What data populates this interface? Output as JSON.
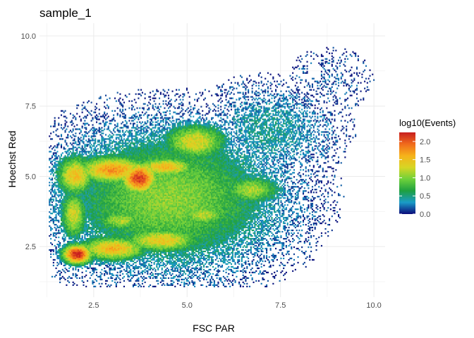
{
  "chart_data": {
    "type": "heatmap",
    "title": "sample_1",
    "xlabel": "FSC PAR",
    "ylabel": "Hoechst Red",
    "xlim": [
      1.05,
      10.3
    ],
    "ylim": [
      0.7,
      10.45
    ],
    "x_ticks": [
      "2.5",
      "5.0",
      "7.5",
      "10.0"
    ],
    "x_tick_values": [
      2.5,
      5.0,
      7.5,
      10.0
    ],
    "y_ticks": [
      "2.5",
      "5.0",
      "7.5",
      "10.0"
    ],
    "y_tick_values": [
      2.5,
      5.0,
      7.5,
      10.0
    ],
    "grid": true,
    "legend": {
      "title": "log10(Events)",
      "placement": "right",
      "ticks": [
        "0.0",
        "0.5",
        "1.0",
        "1.5",
        "2.0"
      ],
      "tick_values": [
        0.0,
        0.5,
        1.0,
        1.5,
        2.0
      ],
      "range": [
        0.0,
        2.25
      ]
    },
    "colorscale": [
      "#0b0b7a",
      "#1a9bc7",
      "#1fa040",
      "#6fd13a",
      "#d7d624",
      "#f6b21a",
      "#f06a1c",
      "#c81e1e"
    ],
    "density_components": [
      {
        "x": 2.05,
        "y": 2.2,
        "sx": 0.28,
        "sy": 0.25,
        "value": 2.3
      },
      {
        "x": 3.7,
        "y": 4.9,
        "sx": 0.35,
        "sy": 0.4,
        "value": 2.15
      },
      {
        "x": 3.0,
        "y": 5.2,
        "sx": 0.7,
        "sy": 0.35,
        "value": 1.75
      },
      {
        "x": 4.4,
        "y": 5.3,
        "sx": 0.6,
        "sy": 0.25,
        "value": 1.55
      },
      {
        "x": 2.0,
        "y": 5.0,
        "sx": 0.35,
        "sy": 0.5,
        "value": 1.5
      },
      {
        "x": 3.0,
        "y": 2.4,
        "sx": 0.65,
        "sy": 0.3,
        "value": 1.6
      },
      {
        "x": 4.3,
        "y": 2.7,
        "sx": 0.75,
        "sy": 0.3,
        "value": 1.45
      },
      {
        "x": 5.2,
        "y": 6.2,
        "sx": 0.6,
        "sy": 0.45,
        "value": 1.35
      },
      {
        "x": 5.4,
        "y": 3.6,
        "sx": 0.5,
        "sy": 0.3,
        "value": 1.2
      },
      {
        "x": 6.7,
        "y": 4.5,
        "sx": 0.55,
        "sy": 0.35,
        "value": 1.15
      },
      {
        "x": 3.2,
        "y": 3.4,
        "sx": 0.5,
        "sy": 0.25,
        "value": 1.15
      },
      {
        "x": 1.95,
        "y": 3.6,
        "sx": 0.25,
        "sy": 0.6,
        "value": 1.3
      },
      {
        "x": 4.5,
        "y": 4.2,
        "sx": 1.9,
        "sy": 1.6,
        "value": 1.05
      },
      {
        "x": 7.2,
        "y": 6.6,
        "sx": 1.1,
        "sy": 1.0,
        "value": 0.45
      },
      {
        "x": 8.8,
        "y": 8.4,
        "sx": 0.8,
        "sy": 0.8,
        "value": 0.15
      }
    ]
  }
}
